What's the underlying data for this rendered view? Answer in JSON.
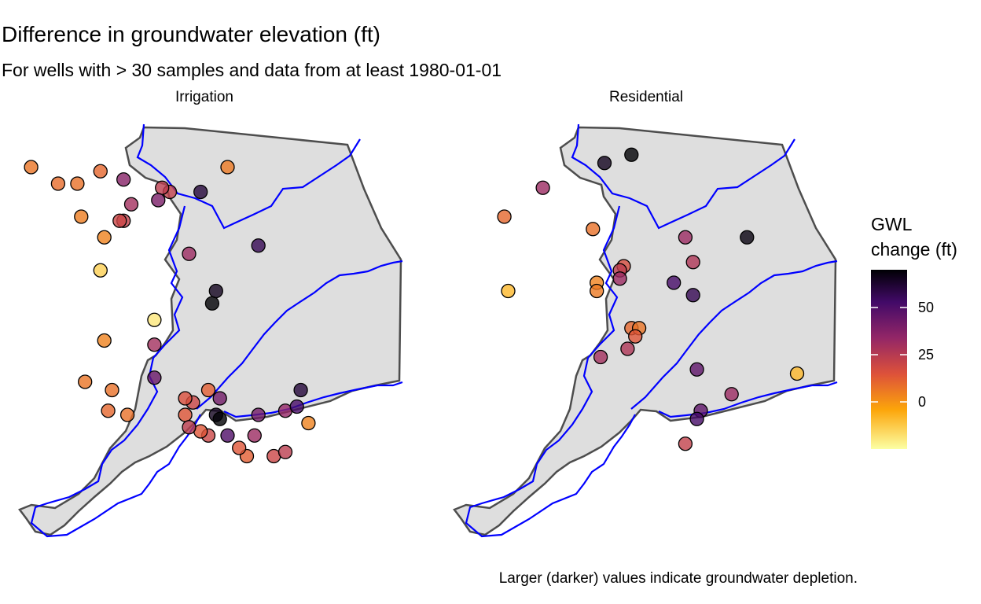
{
  "title": "Difference in groundwater elevation (ft)",
  "subtitle": "For wells with > 30 samples and data from at least 1980-01-01",
  "caption": "Larger (darker) values indicate groundwater depletion.",
  "panels": [
    {
      "label": "Irrigation",
      "wells": [
        {
          "lon": 0.04,
          "lat": 0.9,
          "value": 5
        },
        {
          "lon": 0.11,
          "lat": 0.86,
          "value": 7
        },
        {
          "lon": 0.16,
          "lat": 0.86,
          "value": 6
        },
        {
          "lon": 0.22,
          "lat": 0.89,
          "value": 8
        },
        {
          "lon": 0.28,
          "lat": 0.87,
          "value": 35
        },
        {
          "lon": 0.55,
          "lat": 0.9,
          "value": 4
        },
        {
          "lon": 0.48,
          "lat": 0.84,
          "value": 60
        },
        {
          "lon": 0.4,
          "lat": 0.84,
          "value": 20
        },
        {
          "lon": 0.38,
          "lat": 0.85,
          "value": 22
        },
        {
          "lon": 0.37,
          "lat": 0.82,
          "value": 38
        },
        {
          "lon": 0.3,
          "lat": 0.81,
          "value": 28
        },
        {
          "lon": 0.17,
          "lat": 0.78,
          "value": 3
        },
        {
          "lon": 0.28,
          "lat": 0.77,
          "value": 20
        },
        {
          "lon": 0.27,
          "lat": 0.77,
          "value": 18
        },
        {
          "lon": 0.23,
          "lat": 0.73,
          "value": 2
        },
        {
          "lon": 0.45,
          "lat": 0.69,
          "value": 30
        },
        {
          "lon": 0.63,
          "lat": 0.71,
          "value": 55
        },
        {
          "lon": 0.52,
          "lat": 0.6,
          "value": 65
        },
        {
          "lon": 0.51,
          "lat": 0.57,
          "value": 80
        },
        {
          "lon": 0.22,
          "lat": 0.65,
          "value": -15
        },
        {
          "lon": 0.36,
          "lat": 0.53,
          "value": -20
        },
        {
          "lon": 0.23,
          "lat": 0.48,
          "value": 2
        },
        {
          "lon": 0.36,
          "lat": 0.47,
          "value": 28
        },
        {
          "lon": 0.36,
          "lat": 0.39,
          "value": 42
        },
        {
          "lon": 0.18,
          "lat": 0.38,
          "value": 5
        },
        {
          "lon": 0.25,
          "lat": 0.36,
          "value": 6
        },
        {
          "lon": 0.24,
          "lat": 0.31,
          "value": 8
        },
        {
          "lon": 0.29,
          "lat": 0.3,
          "value": 6
        },
        {
          "lon": 0.44,
          "lat": 0.3,
          "value": 12
        },
        {
          "lon": 0.46,
          "lat": 0.33,
          "value": 18
        },
        {
          "lon": 0.44,
          "lat": 0.34,
          "value": 14
        },
        {
          "lon": 0.5,
          "lat": 0.36,
          "value": 10
        },
        {
          "lon": 0.53,
          "lat": 0.34,
          "value": 40
        },
        {
          "lon": 0.52,
          "lat": 0.3,
          "value": 65
        },
        {
          "lon": 0.53,
          "lat": 0.29,
          "value": 78
        },
        {
          "lon": 0.5,
          "lat": 0.25,
          "value": 18
        },
        {
          "lon": 0.48,
          "lat": 0.26,
          "value": 12
        },
        {
          "lon": 0.45,
          "lat": 0.27,
          "value": 22
        },
        {
          "lon": 0.55,
          "lat": 0.25,
          "value": 48
        },
        {
          "lon": 0.62,
          "lat": 0.25,
          "value": 30
        },
        {
          "lon": 0.63,
          "lat": 0.3,
          "value": 40
        },
        {
          "lon": 0.7,
          "lat": 0.31,
          "value": 32
        },
        {
          "lon": 0.73,
          "lat": 0.32,
          "value": 50
        },
        {
          "lon": 0.74,
          "lat": 0.36,
          "value": 60
        },
        {
          "lon": 0.76,
          "lat": 0.28,
          "value": 2
        },
        {
          "lon": 0.6,
          "lat": 0.2,
          "value": 10
        },
        {
          "lon": 0.58,
          "lat": 0.22,
          "value": 12
        },
        {
          "lon": 0.67,
          "lat": 0.2,
          "value": 18
        },
        {
          "lon": 0.7,
          "lat": 0.21,
          "value": 22
        }
      ]
    },
    {
      "label": "Residential",
      "wells": [
        {
          "lon": 0.4,
          "lat": 0.91,
          "value": 65
        },
        {
          "lon": 0.47,
          "lat": 0.93,
          "value": 75
        },
        {
          "lon": 0.24,
          "lat": 0.85,
          "value": 30
        },
        {
          "lon": 0.14,
          "lat": 0.78,
          "value": 8
        },
        {
          "lon": 0.37,
          "lat": 0.75,
          "value": 6
        },
        {
          "lon": 0.61,
          "lat": 0.73,
          "value": 30
        },
        {
          "lon": 0.77,
          "lat": 0.73,
          "value": 68
        },
        {
          "lon": 0.45,
          "lat": 0.66,
          "value": 15
        },
        {
          "lon": 0.44,
          "lat": 0.65,
          "value": 22
        },
        {
          "lon": 0.44,
          "lat": 0.63,
          "value": 30
        },
        {
          "lon": 0.38,
          "lat": 0.62,
          "value": 2
        },
        {
          "lon": 0.38,
          "lat": 0.6,
          "value": 4
        },
        {
          "lon": 0.63,
          "lat": 0.67,
          "value": 25
        },
        {
          "lon": 0.58,
          "lat": 0.62,
          "value": 50
        },
        {
          "lon": 0.63,
          "lat": 0.59,
          "value": 55
        },
        {
          "lon": 0.15,
          "lat": 0.6,
          "value": -10
        },
        {
          "lon": 0.47,
          "lat": 0.51,
          "value": 8
        },
        {
          "lon": 0.49,
          "lat": 0.51,
          "value": 5
        },
        {
          "lon": 0.48,
          "lat": 0.49,
          "value": 12
        },
        {
          "lon": 0.46,
          "lat": 0.46,
          "value": 25
        },
        {
          "lon": 0.39,
          "lat": 0.44,
          "value": 28
        },
        {
          "lon": 0.64,
          "lat": 0.41,
          "value": 45
        },
        {
          "lon": 0.73,
          "lat": 0.35,
          "value": 30
        },
        {
          "lon": 0.65,
          "lat": 0.31,
          "value": 45
        },
        {
          "lon": 0.64,
          "lat": 0.29,
          "value": 50
        },
        {
          "lon": 0.61,
          "lat": 0.23,
          "value": 20
        },
        {
          "lon": 0.9,
          "lat": 0.4,
          "value": -10
        }
      ]
    }
  ],
  "legend": {
    "title_line1": "GWL",
    "title_line2": "change (ft)",
    "ticks": [
      {
        "label": "50",
        "value": 50
      },
      {
        "label": "25",
        "value": 25
      },
      {
        "label": "0",
        "value": 0
      }
    ],
    "min": -25,
    "max": 70,
    "colors": [
      "#FCFFA4",
      "#FCA50A",
      "#DD513A",
      "#932667",
      "#420A68",
      "#000004"
    ]
  },
  "colors": {
    "land_fill": "#DEDEDE",
    "boundary": "#4D4D4D",
    "river": "#0000FF",
    "point_stroke": "#000000"
  }
}
